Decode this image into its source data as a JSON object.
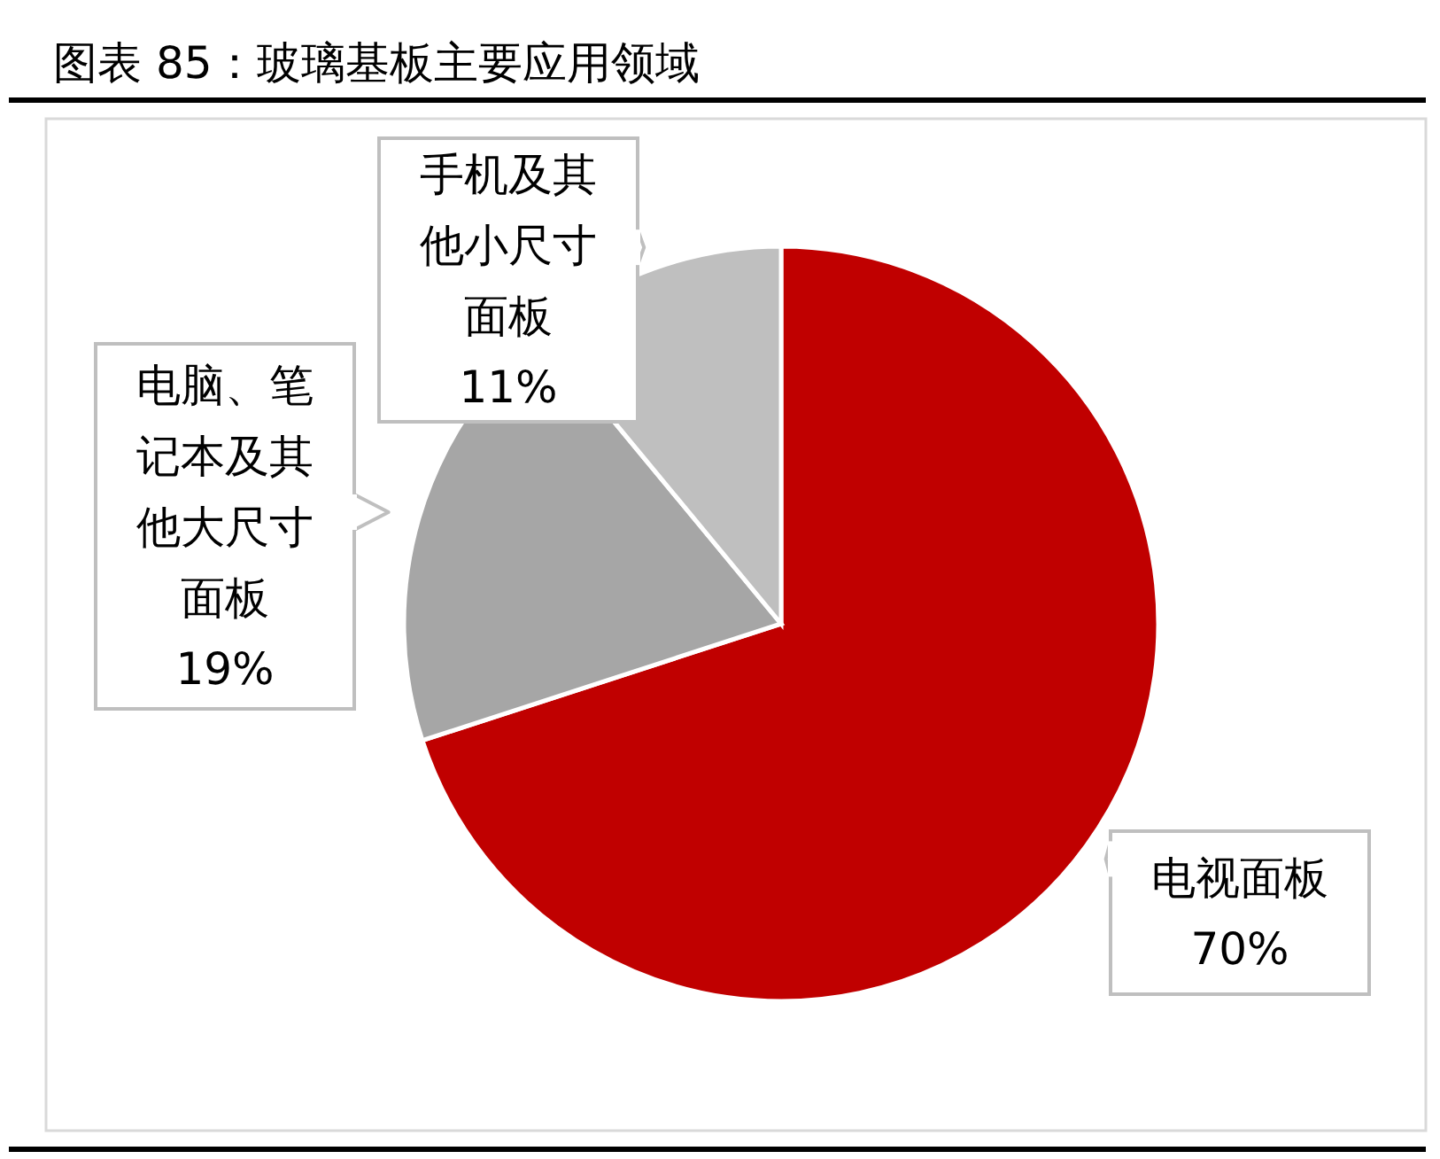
{
  "chart_data": {
    "type": "pie",
    "title": "图表 85：玻璃基板主要应用领域",
    "categories": [
      "电视面板",
      "电脑、笔记本及其他大尺寸面板",
      "手机及其他小尺寸面板"
    ],
    "values": [
      70,
      19,
      11
    ],
    "colors": [
      "#c00000",
      "#a6a6a6",
      "#bfbfbf"
    ],
    "value_labels": [
      "70%",
      "19%",
      "11%"
    ]
  }
}
